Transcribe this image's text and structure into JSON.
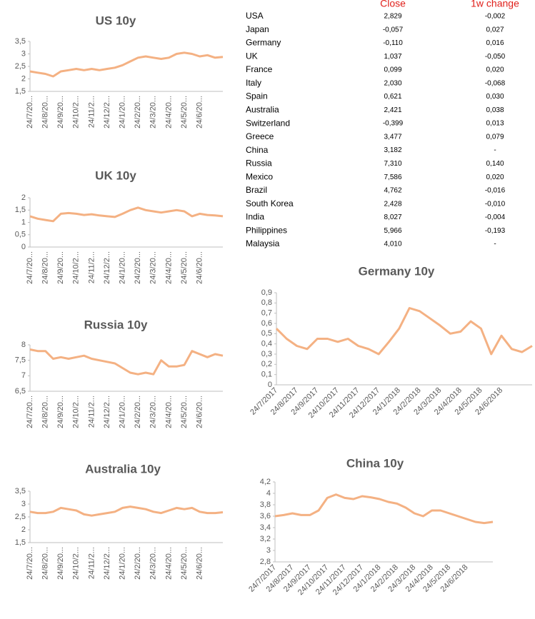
{
  "chart_data": [
    {
      "type": "line",
      "title": "US 10y",
      "color": "#f4b183",
      "categories": [
        "24/7/20...",
        null,
        "24/8/20...",
        null,
        "24/9/20...",
        null,
        "24/10/2...",
        null,
        "24/11/2...",
        null,
        "24/12/2...",
        null,
        "24/1/20...",
        null,
        "24/2/20...",
        null,
        "24/3/20...",
        null,
        "24/4/20...",
        null,
        "24/5/20...",
        null,
        "24/6/20...",
        null,
        null,
        null
      ],
      "values": [
        2.3,
        2.25,
        2.2,
        2.1,
        2.3,
        2.35,
        2.4,
        2.35,
        2.4,
        2.35,
        2.4,
        2.45,
        2.55,
        2.7,
        2.85,
        2.9,
        2.85,
        2.8,
        2.85,
        3.0,
        3.05,
        3.0,
        2.9,
        2.95,
        2.85,
        2.88
      ],
      "ylim": [
        1.5,
        3.5
      ],
      "yticks": [
        {
          "value": 1.5,
          "label": "1,5"
        },
        2,
        {
          "value": 2.5,
          "label": "2,5"
        },
        3,
        {
          "value": 3.5,
          "label": "3,5"
        }
      ]
    },
    {
      "type": "line",
      "title": "UK 10y",
      "color": "#f4b183",
      "categories": [
        "24/7/20...",
        null,
        "24/8/20...",
        null,
        "24/9/20...",
        null,
        "24/10/2...",
        null,
        "24/11/2...",
        null,
        "24/12/2...",
        null,
        "24/1/20...",
        null,
        "24/2/20...",
        null,
        "24/3/20...",
        null,
        "24/4/20...",
        null,
        "24/5/20...",
        null,
        "24/6/20...",
        null,
        null,
        null
      ],
      "values": [
        1.25,
        1.15,
        1.1,
        1.05,
        1.35,
        1.38,
        1.35,
        1.3,
        1.33,
        1.28,
        1.25,
        1.22,
        1.35,
        1.5,
        1.6,
        1.5,
        1.45,
        1.4,
        1.45,
        1.5,
        1.45,
        1.25,
        1.35,
        1.3,
        1.28,
        1.25
      ],
      "ylim": [
        0,
        2
      ],
      "yticks": [
        0,
        {
          "value": 0.5,
          "label": "0,5"
        },
        1,
        {
          "value": 1.5,
          "label": "1,5"
        },
        2
      ]
    },
    {
      "type": "line",
      "title": "Russia 10y",
      "color": "#f4b183",
      "categories": [
        "24/7/20...",
        null,
        "24/8/20...",
        null,
        "24/9/20...",
        null,
        "24/10/2...",
        null,
        "24/11/2...",
        null,
        "24/12/2...",
        null,
        "24/1/20...",
        null,
        "24/2/20...",
        null,
        "24/3/20...",
        null,
        "24/4/20...",
        null,
        "24/5/20...",
        null,
        "24/6/20...",
        null,
        null,
        null
      ],
      "values": [
        7.85,
        7.8,
        7.8,
        7.55,
        7.6,
        7.55,
        7.6,
        7.65,
        7.55,
        7.5,
        7.45,
        7.4,
        7.25,
        7.1,
        7.05,
        7.1,
        7.05,
        7.5,
        7.3,
        7.3,
        7.35,
        7.8,
        7.7,
        7.6,
        7.7,
        7.65
      ],
      "ylim": [
        6.5,
        8
      ],
      "yticks": [
        {
          "value": 6.5,
          "label": "6,5"
        },
        7,
        {
          "value": 7.5,
          "label": "7,5"
        },
        8
      ]
    },
    {
      "type": "line",
      "title": "Australia 10y",
      "color": "#f4b183",
      "categories": [
        "24/7/20...",
        null,
        "24/8/20...",
        null,
        "24/9/20...",
        null,
        "24/10/2...",
        null,
        "24/11/2...",
        null,
        "24/12/2...",
        null,
        "24/1/20...",
        null,
        "24/2/20...",
        null,
        "24/3/20...",
        null,
        "24/4/20...",
        null,
        "24/5/20...",
        null,
        "24/6/20...",
        null,
        null,
        null
      ],
      "values": [
        2.7,
        2.65,
        2.65,
        2.7,
        2.85,
        2.8,
        2.75,
        2.6,
        2.55,
        2.6,
        2.65,
        2.7,
        2.85,
        2.9,
        2.85,
        2.8,
        2.7,
        2.65,
        2.75,
        2.85,
        2.8,
        2.85,
        2.7,
        2.65,
        2.65,
        2.68
      ],
      "ylim": [
        1.5,
        3.5
      ],
      "yticks": [
        {
          "value": 1.5,
          "label": "1,5"
        },
        2,
        {
          "value": 2.5,
          "label": "2,5"
        },
        3,
        {
          "value": 3.5,
          "label": "3,5"
        }
      ]
    },
    {
      "type": "line",
      "title": "Germany 10y",
      "color": "#f4b183",
      "categories": [
        "24/7/2017",
        null,
        "24/8/2017",
        null,
        "24/9/2017",
        null,
        "24/10/2017",
        null,
        "24/11/2017",
        null,
        "24/12/2017",
        null,
        "24/1/2018",
        null,
        "24/2/2018",
        null,
        "24/3/2018",
        null,
        "24/4/2018",
        null,
        "24/5/2018",
        null,
        "24/6/2018",
        null,
        null,
        null
      ],
      "values": [
        0.55,
        0.45,
        0.38,
        0.35,
        0.45,
        0.45,
        0.42,
        0.45,
        0.38,
        0.35,
        0.3,
        0.42,
        0.55,
        0.75,
        0.72,
        0.65,
        0.58,
        0.5,
        0.52,
        0.62,
        0.55,
        0.3,
        0.48,
        0.35,
        0.32,
        0.38
      ],
      "ylim": [
        0,
        0.9
      ],
      "yticks": [
        0,
        {
          "value": 0.1,
          "label": "0,1"
        },
        {
          "value": 0.2,
          "label": "0,2"
        },
        {
          "value": 0.3,
          "label": "0,3"
        },
        {
          "value": 0.4,
          "label": "0,4"
        },
        {
          "value": 0.5,
          "label": "0,5"
        },
        {
          "value": 0.6,
          "label": "0,6"
        },
        {
          "value": 0.7,
          "label": "0,7"
        },
        {
          "value": 0.8,
          "label": "0,8"
        },
        {
          "value": 0.9,
          "label": "0,9"
        }
      ]
    },
    {
      "type": "line",
      "title": "China 10y",
      "color": "#f4b183",
      "categories": [
        "24/7/2017",
        null,
        "24/8/2017",
        null,
        "24/9/2017",
        null,
        "24/10/2017",
        null,
        "24/11/2017",
        null,
        "24/12/2017",
        null,
        "24/1/2018",
        null,
        "24/2/2018",
        null,
        "24/3/2018",
        null,
        "24/4/2018",
        null,
        "24/5/2018",
        null,
        "24/6/2018",
        null,
        null,
        null
      ],
      "values": [
        3.6,
        3.62,
        3.65,
        3.62,
        3.62,
        3.7,
        3.92,
        3.98,
        3.92,
        3.9,
        3.95,
        3.93,
        3.9,
        3.85,
        3.82,
        3.75,
        3.65,
        3.6,
        3.7,
        3.7,
        3.65,
        3.6,
        3.55,
        3.5,
        3.48,
        3.5
      ],
      "ylim": [
        2.8,
        4.2
      ],
      "yticks": [
        {
          "value": 2.8,
          "label": "2,8"
        },
        3,
        {
          "value": 3.2,
          "label": "3,2"
        },
        {
          "value": 3.4,
          "label": "3,4"
        },
        {
          "value": 3.6,
          "label": "3,6"
        },
        {
          "value": 3.8,
          "label": "3,8"
        },
        4,
        {
          "value": 4.2,
          "label": "4,2"
        }
      ]
    }
  ],
  "table": {
    "header": [
      "Close",
      "1w change"
    ],
    "rows": [
      [
        "USA",
        "2,829",
        "-0,002"
      ],
      [
        "Japan",
        "-0,057",
        "0,027"
      ],
      [
        "Germany",
        "-0,110",
        "0,016"
      ],
      [
        "UK",
        "1,037",
        "-0,050"
      ],
      [
        "France",
        "0,099",
        "0,020"
      ],
      [
        "Italy",
        "2,030",
        "-0,068"
      ],
      [
        "Spain",
        "0,621",
        "0,030"
      ],
      [
        "Australia",
        "2,421",
        "0,038"
      ],
      [
        "Switzerland",
        "-0,399",
        "0,013"
      ],
      [
        "Greece",
        "3,477",
        "0,079"
      ],
      [
        "China",
        "3,182",
        "-"
      ],
      [
        "Russia",
        "7,310",
        "0,140"
      ],
      [
        "Mexico",
        "7,586",
        "0,020"
      ],
      [
        "Brazil",
        "4,762",
        "-0,016"
      ],
      [
        "South Korea",
        "2,428",
        "-0,010"
      ],
      [
        "India",
        "8,027",
        "-0,004"
      ],
      [
        "Philippines",
        "5,966",
        "-0,193"
      ],
      [
        "Malaysia",
        "4,010",
        "-"
      ]
    ]
  }
}
